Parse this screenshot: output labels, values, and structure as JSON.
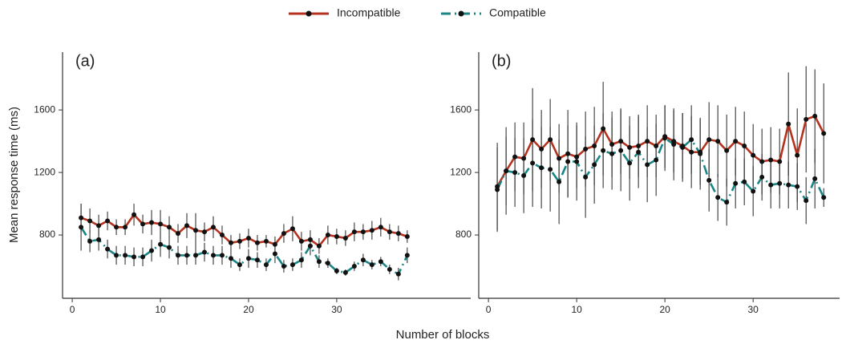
{
  "chart_data": [
    {
      "type": "line",
      "label": "(a)",
      "ylabel": "Mean response time (ms)",
      "xlabel": "Number of blocks",
      "x": [
        1,
        2,
        3,
        4,
        5,
        6,
        7,
        8,
        9,
        10,
        11,
        12,
        13,
        14,
        15,
        16,
        17,
        18,
        19,
        20,
        21,
        22,
        23,
        24,
        25,
        26,
        27,
        28,
        29,
        30,
        31,
        32,
        33,
        34,
        35,
        36,
        37,
        38
      ],
      "xlim": [
        -1.1,
        45.2
      ],
      "ylim": [
        395,
        1970
      ],
      "xticks": [
        0,
        10,
        20,
        30
      ],
      "yticks": [
        800,
        1200,
        1600
      ],
      "series": [
        {
          "name": "Incompatible",
          "color": "#b5321f",
          "dash": "solid",
          "values": [
            910,
            890,
            860,
            890,
            850,
            850,
            930,
            870,
            880,
            870,
            850,
            810,
            860,
            830,
            820,
            850,
            800,
            750,
            760,
            780,
            750,
            760,
            740,
            810,
            840,
            760,
            770,
            730,
            800,
            790,
            780,
            820,
            820,
            830,
            850,
            820,
            810,
            790
          ],
          "errors": [
            90,
            80,
            70,
            60,
            50,
            50,
            70,
            60,
            80,
            90,
            70,
            60,
            80,
            110,
            60,
            70,
            60,
            50,
            50,
            60,
            50,
            40,
            50,
            60,
            80,
            60,
            60,
            50,
            60,
            50,
            50,
            60,
            50,
            60,
            60,
            50,
            50,
            40
          ]
        },
        {
          "name": "Compatible",
          "color": "#1a8585",
          "dash": "dashdot",
          "values": [
            850,
            760,
            770,
            710,
            670,
            670,
            660,
            660,
            700,
            740,
            720,
            670,
            670,
            670,
            690,
            670,
            670,
            650,
            610,
            650,
            640,
            610,
            680,
            600,
            610,
            640,
            730,
            630,
            620,
            570,
            560,
            600,
            640,
            610,
            630,
            580,
            550,
            670
          ],
          "errors": [
            150,
            70,
            70,
            60,
            60,
            60,
            60,
            60,
            70,
            80,
            70,
            60,
            60,
            60,
            60,
            60,
            60,
            60,
            40,
            60,
            50,
            40,
            60,
            40,
            40,
            50,
            60,
            40,
            30,
            20,
            20,
            30,
            40,
            30,
            30,
            30,
            40,
            50
          ]
        }
      ]
    },
    {
      "type": "line",
      "label": "(b)",
      "x": [
        1,
        2,
        3,
        4,
        5,
        6,
        7,
        8,
        9,
        10,
        11,
        12,
        13,
        14,
        15,
        16,
        17,
        18,
        19,
        20,
        21,
        22,
        23,
        24,
        25,
        26,
        27,
        28,
        29,
        30,
        31,
        32,
        33,
        34,
        35,
        36,
        37,
        38
      ],
      "xlim": [
        -1.1,
        39.8
      ],
      "ylim": [
        395,
        1970
      ],
      "xticks": [
        0,
        10,
        20,
        30
      ],
      "yticks": [
        800,
        1200,
        1600
      ],
      "series": [
        {
          "color": "#b5321f",
          "dash": "solid",
          "values": [
            1110,
            1210,
            1300,
            1290,
            1410,
            1350,
            1410,
            1290,
            1320,
            1300,
            1350,
            1370,
            1480,
            1380,
            1400,
            1360,
            1370,
            1400,
            1370,
            1430,
            1400,
            1370,
            1330,
            1330,
            1410,
            1400,
            1340,
            1400,
            1370,
            1310,
            1270,
            1280,
            1270,
            1510,
            1310,
            1540,
            1560,
            1450
          ],
          "errors": [
            280,
            280,
            220,
            230,
            330,
            250,
            260,
            220,
            280,
            200,
            240,
            250,
            300,
            210,
            210,
            200,
            200,
            230,
            200,
            200,
            200,
            210,
            230,
            210,
            240,
            230,
            230,
            220,
            220,
            200,
            210,
            210,
            210,
            330,
            300,
            340,
            300,
            320
          ]
        },
        {
          "color": "#1a8585",
          "dash": "dashdot",
          "values": [
            1090,
            1210,
            1200,
            1180,
            1260,
            1230,
            1220,
            1140,
            1270,
            1270,
            1170,
            1250,
            1340,
            1320,
            1340,
            1260,
            1330,
            1250,
            1280,
            1420,
            1380,
            1360,
            1410,
            1320,
            1150,
            1040,
            1010,
            1130,
            1140,
            1080,
            1170,
            1120,
            1130,
            1120,
            1110,
            1020,
            1160,
            1040
          ],
          "errors": [
            270,
            220,
            220,
            240,
            280,
            260,
            270,
            270,
            230,
            250,
            260,
            250,
            240,
            230,
            260,
            240,
            230,
            240,
            230,
            210,
            230,
            220,
            220,
            230,
            200,
            150,
            150,
            160,
            150,
            160,
            150,
            150,
            160,
            150,
            150,
            150,
            190,
            60
          ]
        }
      ]
    }
  ]
}
